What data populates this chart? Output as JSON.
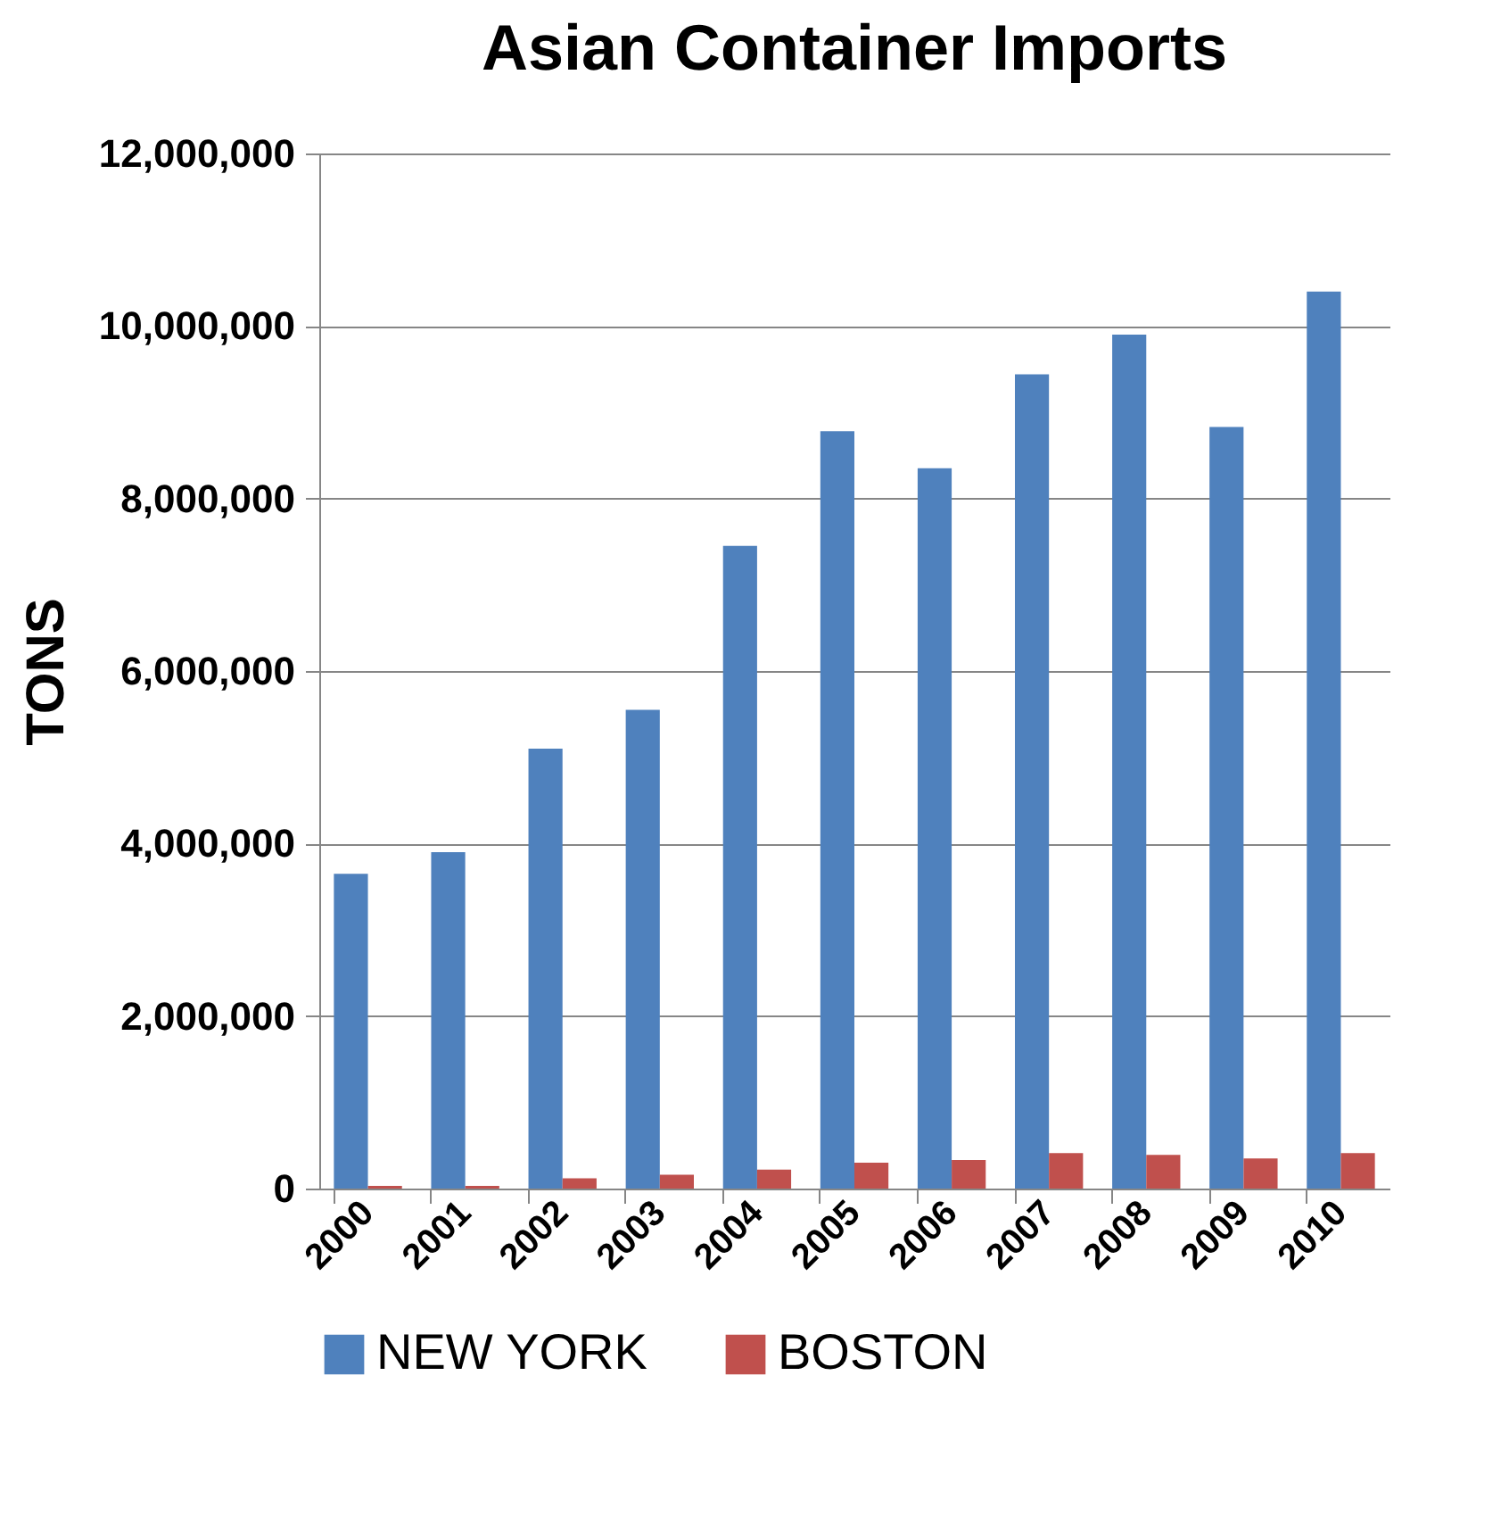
{
  "chart_data": {
    "type": "bar",
    "title": "Asian Container Imports",
    "ylabel": "TONS",
    "categories": [
      "2000",
      "2001",
      "2002",
      "2003",
      "2004",
      "2005",
      "2006",
      "2007",
      "2008",
      "2009",
      "2010"
    ],
    "series": [
      {
        "name": "NEW YORK",
        "color": "#4f81bd",
        "values": [
          3650000,
          3900000,
          5100000,
          5550000,
          7450000,
          8780000,
          8350000,
          9440000,
          9900000,
          8830000,
          10400000
        ]
      },
      {
        "name": "BOSTON",
        "color": "#c0504d",
        "values": [
          30000,
          30000,
          120000,
          160000,
          220000,
          300000,
          330000,
          410000,
          390000,
          350000,
          410000
        ]
      }
    ],
    "ylim": [
      0,
      12000000
    ],
    "yticks": [
      0,
      {
        "value": 2000000,
        "label": "2,000,000"
      },
      {
        "value": 4000000,
        "label": "4,000,000"
      },
      {
        "value": 6000000,
        "label": "6,000,000"
      },
      {
        "value": 8000000,
        "label": "8,000,000"
      },
      {
        "value": 10000000,
        "label": "10,000,000"
      },
      {
        "value": 12000000,
        "label": "12,000,000"
      }
    ],
    "grid": "y",
    "legend": "bottom"
  }
}
